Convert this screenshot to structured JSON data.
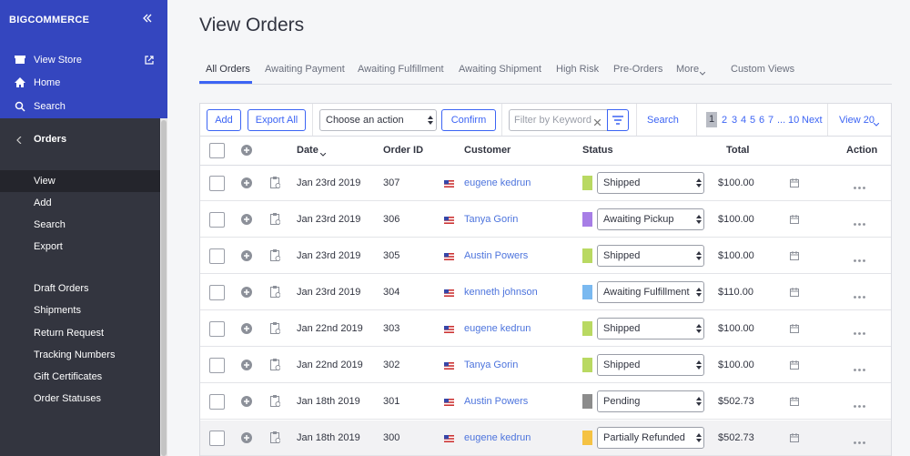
{
  "sidebar": {
    "logo": "BIGCOMMERCE",
    "nav": [
      "View Store",
      "Home",
      "Search"
    ],
    "section": "Orders",
    "items": [
      "View",
      "Add",
      "Search",
      "Export"
    ],
    "more_items": [
      "Draft Orders",
      "Shipments",
      "Return Request",
      "Tracking Numbers",
      "Gift Certificates",
      "Order Statuses"
    ]
  },
  "header": {
    "title": "View Orders"
  },
  "tabs": [
    "All Orders",
    "Awaiting Payment",
    "Awaiting Fulfillment",
    "Awaiting Shipment",
    "High Risk",
    "Pre-Orders",
    "More",
    "Custom Views"
  ],
  "toolbar": {
    "buttons": [
      "Add",
      "Export All"
    ],
    "action_select": "Choose an action",
    "confirm": "Confirm",
    "filter_placeholder": "Filter by Keyword",
    "search": "Search",
    "pagination": [
      "1",
      "2",
      "3",
      "4",
      "5",
      "6",
      "7",
      "...",
      "10",
      "Next"
    ],
    "view": "View 20"
  },
  "table": {
    "columns": [
      "Date",
      "Order ID",
      "Customer",
      "Status",
      "Total",
      "Action"
    ],
    "rows": [
      [
        "Jan 23rd 2019",
        "307",
        "eugene kedrun",
        "Shipped",
        "$100.00"
      ],
      [
        "Jan 23rd 2019",
        "306",
        "Tanya Gorin",
        "Awaiting Pickup",
        "$100.00"
      ],
      [
        "Jan 23rd 2019",
        "305",
        "Austin Powers",
        "Shipped",
        "$100.00"
      ],
      [
        "Jan 23rd 2019",
        "304",
        "kenneth johnson",
        "Awaiting Fulfillment",
        "$110.00"
      ],
      [
        "Jan 22nd 2019",
        "303",
        "eugene kedrun",
        "Shipped",
        "$100.00"
      ],
      [
        "Jan 22nd 2019",
        "302",
        "Tanya Gorin",
        "Shipped",
        "$100.00"
      ],
      [
        "Jan 18th 2019",
        "301",
        "Austin Powers",
        "Pending",
        "$502.73"
      ],
      [
        "Jan 18th 2019",
        "300",
        "eugene kedrun",
        "Partially Refunded",
        "$502.73"
      ]
    ]
  }
}
